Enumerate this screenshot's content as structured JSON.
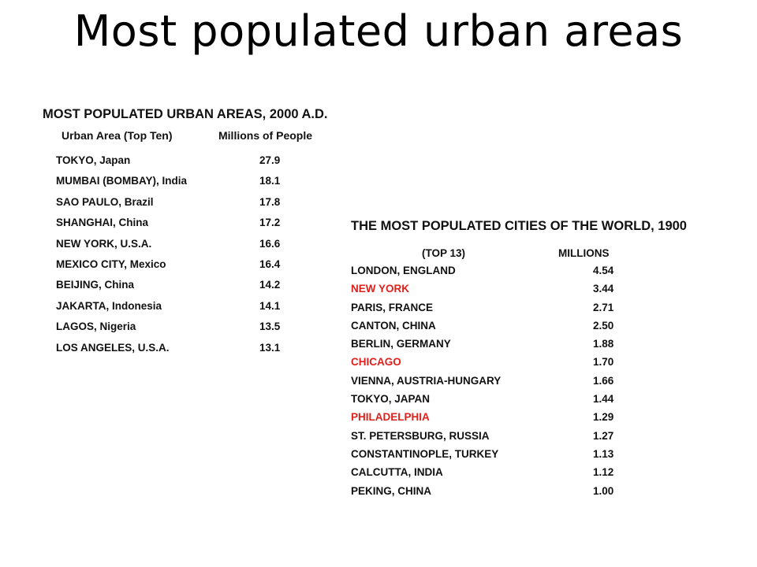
{
  "title": "Most populated urban areas",
  "colors": {
    "text": "#111111",
    "highlight": "#e0201b"
  },
  "table_2000": {
    "heading": "MOST POPULATED URBAN AREAS, 2000 A.D.",
    "col_area": "Urban  Area (Top Ten)",
    "col_value": "Millions of People",
    "rows": [
      {
        "name": "TOKYO, Japan",
        "value": "27.9"
      },
      {
        "name": "MUMBAI (BOMBAY), India",
        "value": "18.1"
      },
      {
        "name": "SAO PAULO, Brazil",
        "value": "17.8"
      },
      {
        "name": "SHANGHAI, China",
        "value": "17.2"
      },
      {
        "name": "NEW YORK, U.S.A.",
        "value": "16.6"
      },
      {
        "name": "MEXICO CITY, Mexico",
        "value": "16.4"
      },
      {
        "name": "BEIJING, China",
        "value": "14.2"
      },
      {
        "name": "JAKARTA, Indonesia",
        "value": "14.1"
      },
      {
        "name": "LAGOS, Nigeria",
        "value": "13.5"
      },
      {
        "name": "LOS ANGELES, U.S.A.",
        "value": "13.1"
      }
    ]
  },
  "table_1900": {
    "heading": "THE MOST POPULATED CITIES OF THE WORLD, 1900",
    "col_area": "(TOP 13)",
    "col_value": "MILLIONS",
    "rows": [
      {
        "name": "LONDON, ENGLAND",
        "value": "4.54",
        "highlight": false
      },
      {
        "name": "NEW YORK",
        "value": "3.44",
        "highlight": true
      },
      {
        "name": "PARIS, FRANCE",
        "value": "2.71",
        "highlight": false
      },
      {
        "name": "CANTON, CHINA",
        "value": "2.50",
        "highlight": false
      },
      {
        "name": "BERLIN, GERMANY",
        "value": "1.88",
        "highlight": false
      },
      {
        "name": "CHICAGO",
        "value": "1.70",
        "highlight": true
      },
      {
        "name": "VIENNA, AUSTRIA-HUNGARY",
        "value": "1.66",
        "highlight": false
      },
      {
        "name": "TOKYO, JAPAN",
        "value": "1.44",
        "highlight": false
      },
      {
        "name": "PHILADELPHIA",
        "value": "1.29",
        "highlight": true
      },
      {
        "name": "ST. PETERSBURG, RUSSIA",
        "value": "1.27",
        "highlight": false
      },
      {
        "name": "CONSTANTINOPLE, TURKEY",
        "value": "1.13",
        "highlight": false
      },
      {
        "name": "CALCUTTA, INDIA",
        "value": "1.12",
        "highlight": false
      },
      {
        "name": "PEKING, CHINA",
        "value": "1.00",
        "highlight": false
      }
    ]
  }
}
